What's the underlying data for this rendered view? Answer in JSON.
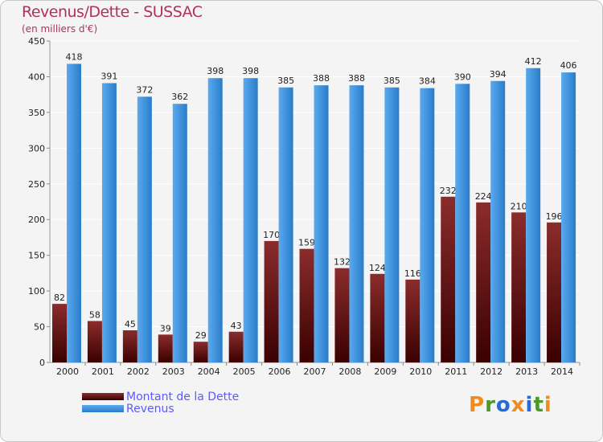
{
  "title": "Revenus/Dette - SUSSAC",
  "subtitle": "(en milliers d'€)",
  "brand": {
    "letters": [
      "P",
      "r",
      "o",
      "x",
      "i",
      "t",
      "i"
    ]
  },
  "colors": {
    "debt_top": "#8b2c2c",
    "debt_bottom": "#3a0000",
    "rev_top": "#5aaaf0",
    "rev_bottom": "#2a7cc8",
    "brand": [
      "#f08c1e",
      "#4a9a2a",
      "#2a6ad8",
      "#f08c1e",
      "#2a6ad8",
      "#4a9a2a",
      "#f08c1e"
    ]
  },
  "chart_data": {
    "type": "bar",
    "categories": [
      "2000",
      "2001",
      "2002",
      "2003",
      "2004",
      "2005",
      "2006",
      "2007",
      "2008",
      "2009",
      "2010",
      "2011",
      "2012",
      "2013",
      "2014"
    ],
    "series": [
      {
        "name": "Montant de la Dette",
        "values": [
          82,
          58,
          45,
          39,
          29,
          43,
          170,
          159,
          132,
          124,
          116,
          232,
          224,
          210,
          196
        ]
      },
      {
        "name": "Revenus",
        "values": [
          418,
          391,
          372,
          362,
          398,
          398,
          385,
          388,
          388,
          385,
          384,
          390,
          394,
          412,
          406
        ]
      }
    ],
    "ylim": [
      0,
      450
    ],
    "yticks": [
      0,
      50,
      100,
      150,
      200,
      250,
      300,
      350,
      400,
      450
    ],
    "grid": true,
    "legend": "bottom-left"
  }
}
